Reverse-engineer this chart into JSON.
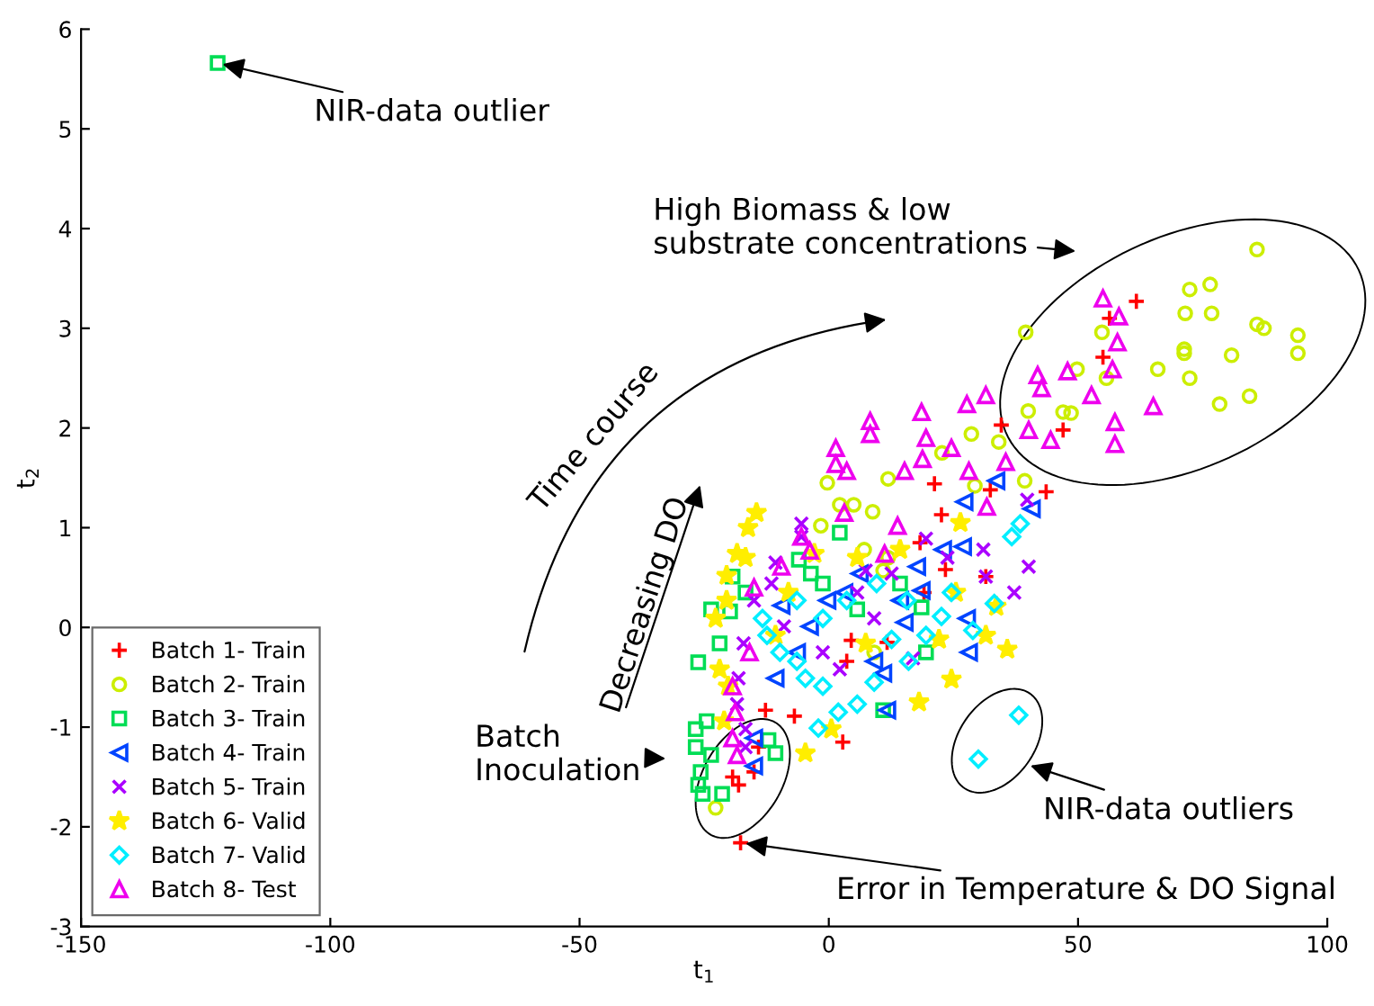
{
  "chart_data": {
    "type": "scatter",
    "xlabel": "t$_{1}$",
    "ylabel": "t$_{2}$",
    "xlim": [
      -150,
      100
    ],
    "xticks": [
      -150,
      -100,
      -50,
      0,
      50,
      100
    ],
    "ylim": [
      -3,
      6
    ],
    "yticks": [
      -3,
      -2,
      -1,
      0,
      1,
      2,
      3,
      4,
      5,
      6
    ],
    "grid": false,
    "legend": "bottom left",
    "series": [
      {
        "name": "Batch 1- Train",
        "color": "#ff0000",
        "marker": "cross",
        "x": [
          61.7,
          56.3,
          55,
          47,
          34.6,
          43.6,
          32.4,
          21.2,
          22.6,
          18.3,
          23.4,
          19.1,
          31.5,
          11.7,
          4.5,
          3.6,
          2.8,
          -6.9,
          -12.7,
          -14.1,
          -15,
          -18.1,
          -17.7,
          -19.3
        ],
        "values": [
          3.27,
          3.1,
          2.71,
          1.98,
          2.03,
          1.36,
          1.38,
          1.44,
          1.13,
          0.85,
          0.58,
          0.35,
          0.51,
          -0.15,
          -0.13,
          -0.34,
          -1.15,
          -0.89,
          -0.83,
          -1.2,
          -1.45,
          -1.58,
          -2.16,
          -1.5
        ]
      },
      {
        "name": "Batch 2- Train",
        "color": "#ccee00",
        "marker": "circle",
        "x": [
          94.1,
          94.1,
          85.9,
          87.3,
          85.9,
          72.4,
          76.5,
          71.5,
          76.8,
          71.3,
          71.3,
          80.8,
          72.4,
          66,
          78.4,
          84.4,
          39.5,
          54.8,
          55.7,
          49.8,
          47,
          48.6,
          40,
          39.3,
          34.1,
          28.6,
          22.7,
          11.9,
          2.2,
          5,
          8.8,
          -0.3,
          -1.6,
          11.9,
          10.9,
          29.3,
          7.1,
          -22.7,
          9.1
        ],
        "values": [
          2.93,
          2.75,
          3.04,
          3.0,
          3.79,
          3.39,
          3.44,
          3.15,
          3.15,
          2.79,
          2.75,
          2.73,
          2.5,
          2.59,
          2.24,
          2.32,
          2.96,
          2.96,
          2.5,
          2.59,
          2.16,
          2.15,
          2.17,
          1.47,
          1.86,
          1.94,
          1.75,
          1.49,
          1.23,
          1.23,
          1.16,
          1.45,
          1.02,
          0.7,
          0.57,
          1.42,
          0.78,
          -1.81,
          -0.25
        ]
      },
      {
        "name": "Batch 3- Train",
        "color": "#00dd55",
        "marker": "square",
        "x": [
          -122.6,
          -23.6,
          -26.2,
          -19.3,
          -16.7,
          -19.8,
          -21.9,
          -26.7,
          -26.7,
          -25.7,
          -26.2,
          -25.3,
          -21.4,
          -23.6,
          -24.5,
          -10.7,
          -12.1,
          -6,
          -3.6,
          2.2,
          10.9,
          18.6,
          19.5,
          14.3,
          -1.2,
          5.7
        ],
        "values": [
          5.66,
          0.18,
          -0.35,
          0.51,
          0.35,
          0.16,
          -0.16,
          -1.02,
          -1.2,
          -1.45,
          -1.58,
          -1.67,
          -1.67,
          -1.28,
          -0.94,
          -1.26,
          -1.13,
          0.68,
          0.54,
          0.95,
          -0.83,
          0.2,
          -0.25,
          0.44,
          0.44,
          0.18
        ]
      },
      {
        "name": "Batch 4- Train",
        "color": "#0044ff",
        "marker": "triangle-left",
        "x": [
          33.6,
          40.7,
          27.2,
          22.9,
          17.7,
          26.9,
          27.7,
          18.6,
          15.2,
          10.9,
          9.1,
          11.7,
          6.2,
          3.1,
          -0.3,
          -3.8,
          -6.4,
          28.1,
          -15,
          -15,
          -10.7,
          -9.5,
          14.3
        ],
        "values": [
          1.47,
          1.19,
          1.26,
          0.78,
          0.61,
          0.81,
          0.09,
          0.37,
          0.05,
          -0.46,
          -0.34,
          -0.83,
          0.54,
          0.35,
          0.27,
          0.01,
          -0.25,
          -0.25,
          -1.39,
          -1.11,
          -0.51,
          0.22,
          0.27
        ]
      },
      {
        "name": "Batch 5- Train",
        "color": "#aa00ff",
        "marker": "x",
        "x": [
          40.1,
          37.2,
          39.8,
          31,
          31.5,
          23.8,
          19.5,
          12.6,
          7.4,
          5.7,
          16.9,
          -5.5,
          -5.5,
          -10.7,
          -11.5,
          -15,
          -17.1,
          -18.1,
          -18.4,
          -16.7,
          -9,
          -1.2,
          2.2,
          9.1,
          -16.7
        ],
        "values": [
          0.61,
          0.35,
          1.28,
          0.78,
          0.51,
          0.7,
          0.89,
          0.54,
          0.57,
          0.35,
          -0.31,
          1.04,
          0.91,
          0.65,
          0.44,
          0.27,
          -0.16,
          -0.51,
          -0.77,
          -1.02,
          0.01,
          -0.25,
          -0.42,
          0.09,
          -1.2
        ]
      },
      {
        "name": "Batch 6- Valid",
        "color": "#ffee00",
        "marker": "star",
        "x": [
          -14.5,
          -16.2,
          -18.4,
          -16.7,
          -20.5,
          -20.5,
          -22.7,
          -21.9,
          -20.2,
          -21,
          -4.7,
          24.6,
          35.8,
          18.1,
          0.5,
          26.4,
          25.5,
          33.6,
          14.3,
          5.7,
          -2.9,
          -8.1,
          -10.7,
          31.5,
          22.1,
          7.4
        ],
        "values": [
          1.15,
          1.0,
          0.74,
          0.7,
          0.52,
          0.27,
          0.09,
          -0.42,
          -0.59,
          -0.94,
          -1.26,
          -0.52,
          -0.22,
          -0.75,
          -1.02,
          1.05,
          0.35,
          0.21,
          0.78,
          0.7,
          0.74,
          0.35,
          -0.08,
          -0.08,
          -0.12,
          -0.16
        ]
      },
      {
        "name": "Batch 7- Valid",
        "color": "#00eeff",
        "marker": "diamond",
        "x": [
          38.1,
          30,
          38.4,
          36.7,
          33.2,
          28.9,
          24.6,
          22.6,
          19.5,
          16,
          12.6,
          9.1,
          5.7,
          1.9,
          -2.1,
          -1.2,
          -4.7,
          -6.4,
          -9.8,
          -12.4,
          -13.3,
          -6.4,
          -1.2,
          3.6,
          9.6,
          15.7
        ],
        "values": [
          -0.88,
          -1.32,
          1.04,
          0.91,
          0.24,
          -0.03,
          0.35,
          0.11,
          -0.08,
          -0.34,
          -0.12,
          -0.55,
          -0.77,
          -0.85,
          -1.01,
          -0.59,
          -0.51,
          -0.34,
          -0.25,
          -0.08,
          0.09,
          0.27,
          0.09,
          0.27,
          0.44,
          0.27
        ]
      },
      {
        "name": "Batch 8- Test",
        "color": "#ee00ee",
        "marker": "triangle",
        "x": [
          55,
          58.2,
          57.9,
          56.9,
          57.4,
          57.4,
          65.1,
          52.7,
          47.9,
          42.7,
          41.9,
          44.5,
          40.1,
          31.5,
          27.7,
          18.6,
          19.5,
          18.8,
          15.2,
          8.3,
          8.3,
          1.4,
          1.4,
          3.6,
          3.1,
          28.1,
          24.6,
          31.7,
          35.5,
          13.8,
          -5.5,
          -3.8,
          -9.5,
          -15,
          -15.9,
          -19.3,
          -18.8,
          -19.3,
          -18.4,
          11.2
        ],
        "values": [
          3.3,
          3.12,
          2.86,
          2.59,
          2.06,
          1.84,
          2.22,
          2.33,
          2.57,
          2.4,
          2.53,
          1.88,
          1.98,
          2.33,
          2.24,
          2.16,
          1.9,
          1.69,
          1.57,
          2.07,
          1.94,
          1.8,
          1.64,
          1.57,
          1.15,
          1.57,
          1.8,
          1.21,
          1.66,
          1.02,
          0.91,
          0.77,
          0.61,
          0.4,
          -0.25,
          -0.59,
          -0.85,
          -1.11,
          -1.28,
          0.74
        ]
      }
    ],
    "annotations": [
      {
        "text": "NIR-data outlier",
        "x": -122.6,
        "y": 5.66
      },
      "High Biomass & low\nsubstrate concentrations",
      "Time course",
      "Decreasing DO",
      "Batch\nInoculation",
      "NIR-data outliers",
      {
        "text": "Error in Temperature & DO Signal",
        "x": -17.7,
        "y": -2.16
      }
    ]
  }
}
